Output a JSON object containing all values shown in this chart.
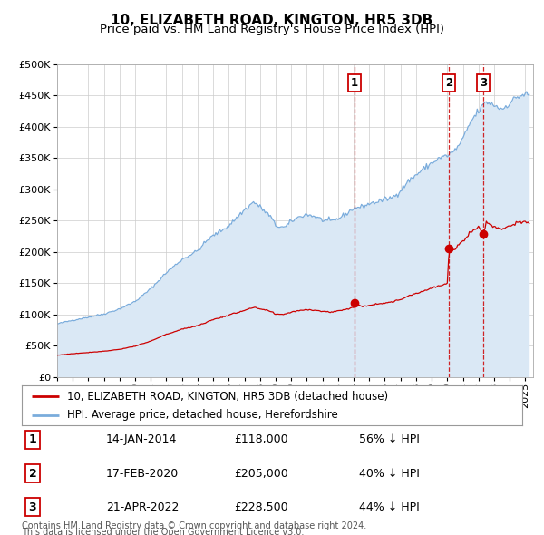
{
  "title": "10, ELIZABETH ROAD, KINGTON, HR5 3DB",
  "subtitle": "Price paid vs. HM Land Registry's House Price Index (HPI)",
  "ylim": [
    0,
    500000
  ],
  "yticks": [
    0,
    50000,
    100000,
    150000,
    200000,
    250000,
    300000,
    350000,
    400000,
    450000,
    500000
  ],
  "xlim_start": 1995.0,
  "xlim_end": 2025.5,
  "sale_dates": [
    2014.04,
    2020.12,
    2022.3
  ],
  "sale_prices": [
    118000,
    205000,
    228500
  ],
  "sale_labels": [
    "1",
    "2",
    "3"
  ],
  "legend_red": "10, ELIZABETH ROAD, KINGTON, HR5 3DB (detached house)",
  "legend_blue": "HPI: Average price, detached house, Herefordshire",
  "table_rows": [
    [
      "1",
      "14-JAN-2014",
      "£118,000",
      "56% ↓ HPI"
    ],
    [
      "2",
      "17-FEB-2020",
      "£205,000",
      "40% ↓ HPI"
    ],
    [
      "3",
      "21-APR-2022",
      "£228,500",
      "44% ↓ HPI"
    ]
  ],
  "footnote1": "Contains HM Land Registry data © Crown copyright and database right 2024.",
  "footnote2": "This data is licensed under the Open Government Licence v3.0.",
  "red_color": "#cc0000",
  "blue_color": "#7aacdc",
  "blue_fill": "#dae8f5",
  "grid_color": "#cccccc",
  "bg_color": "#ffffff",
  "title_fontsize": 11,
  "subtitle_fontsize": 9.5,
  "tick_fontsize": 8,
  "legend_fontsize": 8.5,
  "table_fontsize": 9,
  "footnote_fontsize": 7
}
